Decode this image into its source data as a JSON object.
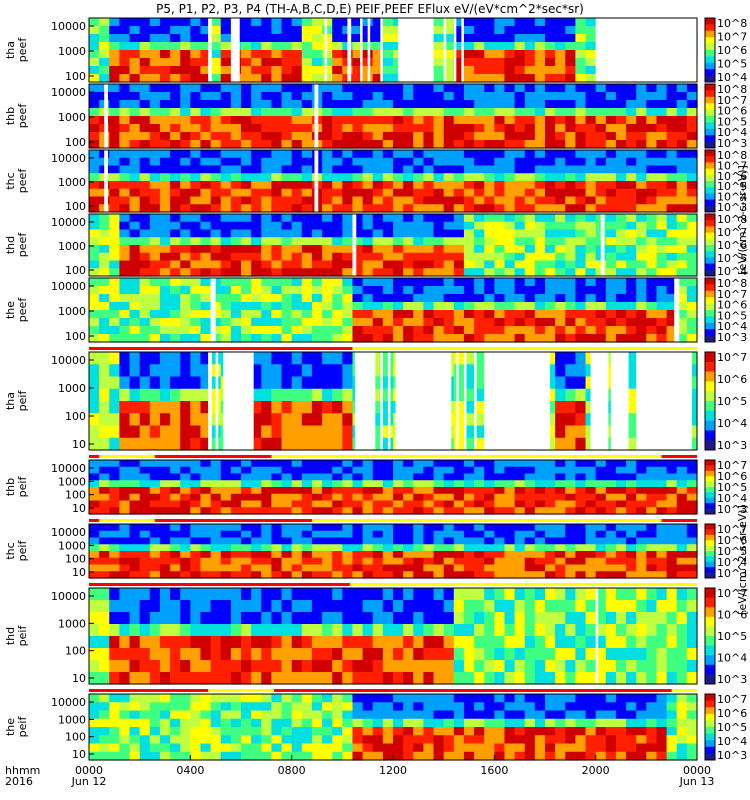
{
  "chart_data": {
    "type": "heatmap",
    "title": "P5, P1, P2, P3, P4 (TH-A,B,C,D,E) PEIF,PEEF EFlux eV/(eV*cm^2*sec*sr)",
    "x_label_row1": "hhmm",
    "x_label_row2": "2016",
    "x_ticks": [
      "0000",
      "0400",
      "0800",
      "1200",
      "1600",
      "2000",
      "0000"
    ],
    "x_date_labels": [
      "Jun 12",
      "Jun 13"
    ],
    "x_range_hours": [
      0,
      24
    ],
    "colorbar_units_top": "[eV/(cm^2-s-sr-eV)]",
    "colorbar_units_bottom": "[eV/(cm^2-s-sr-eV)]",
    "colormap": [
      "#1a1a8c",
      "#0000ff",
      "#00a0ff",
      "#00e0e0",
      "#40ff80",
      "#c0ff40",
      "#ffff00",
      "#ffa000",
      "#ff2000",
      "#d00000"
    ],
    "panels": [
      {
        "label1": "tha",
        "label2": "peef",
        "y_ticks": [
          "10000",
          "1000",
          "100"
        ],
        "colorbar_ticks": [
          "10^8",
          "10^7",
          "10^6",
          "10^5",
          "10^4"
        ],
        "band_hours": [
          [
            0.8,
            4.7
          ],
          [
            5.3,
            8.6
          ],
          [
            9.4,
            11.8
          ],
          [
            14.4,
            19.2
          ]
        ],
        "gaps": [
          [
            4.7,
            4.85
          ],
          [
            5.6,
            5.95
          ],
          [
            9.3,
            9.4
          ],
          [
            10.2,
            10.35
          ],
          [
            10.7,
            10.8
          ],
          [
            11.0,
            11.1
          ],
          [
            11.5,
            11.6
          ],
          [
            12.2,
            13.6
          ],
          [
            14.0,
            14.1
          ],
          [
            14.4,
            14.5
          ],
          [
            14.7,
            14.8
          ],
          [
            20.0,
            24.0
          ]
        ],
        "state_bar": "none"
      },
      {
        "label1": "thb",
        "label2": "peef",
        "y_ticks": [
          "10000",
          "1000",
          "100"
        ],
        "colorbar_ticks": [
          "10^8",
          "10^7",
          "10^6",
          "10^5",
          "10^4",
          "10^3"
        ],
        "band_hours": [
          [
            0,
            24
          ]
        ],
        "gaps": [
          [
            0.6,
            0.75
          ],
          [
            8.9,
            9.05
          ]
        ],
        "state_bar": "none"
      },
      {
        "label1": "thc",
        "label2": "peef",
        "y_ticks": [
          "10000",
          "1000",
          "100"
        ],
        "colorbar_ticks": [
          "10^8",
          "10^7",
          "10^6",
          "10^5",
          "10^4",
          "10^3"
        ],
        "band_hours": [
          [
            0,
            24
          ]
        ],
        "gaps": [
          [
            0.6,
            0.75
          ],
          [
            8.9,
            9.05
          ]
        ],
        "state_bar": "none"
      },
      {
        "label1": "thd",
        "label2": "peef",
        "y_ticks": [
          "10000",
          "1000",
          "100"
        ],
        "colorbar_ticks": [
          "10^8",
          "10^7",
          "10^6",
          "10^5",
          "10^4"
        ],
        "band_hours": [
          [
            1.3,
            10.5
          ],
          [
            10.6,
            15.0
          ]
        ],
        "gaps": [
          [
            10.4,
            10.55
          ],
          [
            20.2,
            20.35
          ]
        ],
        "state_bar": "none"
      },
      {
        "label1": "the",
        "label2": "peef",
        "y_ticks": [
          "10000",
          "1000",
          "100"
        ],
        "colorbar_ticks": [
          "10^8",
          "10^7",
          "10^6",
          "10^5",
          "10^4",
          "10^3"
        ],
        "band_hours": [
          [
            10.4,
            23.1
          ]
        ],
        "gaps": [
          [
            4.8,
            5.0
          ],
          [
            23.1,
            23.3
          ]
        ],
        "state_bar": "none"
      },
      {
        "label1": "tha",
        "label2": "peif",
        "y_ticks": [
          "10000",
          "1000",
          "100",
          "10"
        ],
        "colorbar_ticks": [
          "10^7",
          "10^6",
          "10^5",
          "10^4",
          "10^3"
        ],
        "band_hours": [
          [
            1.2,
            4.7
          ],
          [
            6.6,
            10.3
          ],
          [
            18.3,
            19.7
          ]
        ],
        "gaps": [
          [
            4.7,
            4.85
          ],
          [
            5.0,
            5.1
          ],
          [
            5.3,
            6.5
          ],
          [
            10.5,
            11.3
          ],
          [
            11.5,
            11.6
          ],
          [
            11.8,
            11.9
          ],
          [
            12.1,
            14.3
          ],
          [
            14.5,
            14.6
          ],
          [
            14.8,
            14.9
          ],
          [
            15.2,
            15.3
          ],
          [
            15.6,
            18.2
          ],
          [
            19.8,
            20.5
          ],
          [
            20.6,
            21.3
          ],
          [
            21.6,
            23.8
          ]
        ],
        "state_bar": [
          [
            0,
            10.4
          ]
        ]
      },
      {
        "label1": "thb",
        "label2": "peif",
        "y_ticks": [
          "10000",
          "1000",
          "100",
          "10"
        ],
        "colorbar_ticks": [
          "10^7",
          "10^6",
          "10^5",
          "10^4",
          "10^3"
        ],
        "band_hours": [
          [
            0,
            24
          ]
        ],
        "gaps": [],
        "state_bar": [
          [
            0,
            0.4
          ],
          [
            2.6,
            7.2
          ],
          [
            22.6,
            24
          ]
        ]
      },
      {
        "label1": "thc",
        "label2": "peif",
        "y_ticks": [
          "10000",
          "1000",
          "100",
          "10"
        ],
        "colorbar_ticks": [
          "10^7",
          "10^6",
          "10^5",
          "10^4",
          "10^3"
        ],
        "band_hours": [
          [
            0,
            24
          ]
        ],
        "gaps": [],
        "state_bar": [
          [
            0,
            0.4
          ],
          [
            2.6,
            8.8
          ],
          [
            22.6,
            24
          ]
        ]
      },
      {
        "label1": "thd",
        "label2": "peif",
        "y_ticks": [
          "10000",
          "1000",
          "100",
          "10"
        ],
        "colorbar_ticks": [
          "10^7",
          "10^6",
          "10^5",
          "10^4",
          "10^3"
        ],
        "band_hours": [
          [
            1.0,
            14.5
          ]
        ],
        "gaps": [
          [
            20.0,
            20.1
          ]
        ],
        "state_bar": [
          [
            0,
            10.3
          ]
        ]
      },
      {
        "label1": "the",
        "label2": "peif",
        "y_ticks": [
          "10000",
          "1000",
          "100",
          "10"
        ],
        "colorbar_ticks": [
          "10^7",
          "10^6",
          "10^5",
          "10^4",
          "10^3"
        ],
        "band_hours": [
          [
            10.4,
            23.0
          ]
        ],
        "gaps": [],
        "state_bar": [
          [
            0,
            4.7
          ],
          [
            7.3,
            23.0
          ]
        ]
      }
    ]
  }
}
